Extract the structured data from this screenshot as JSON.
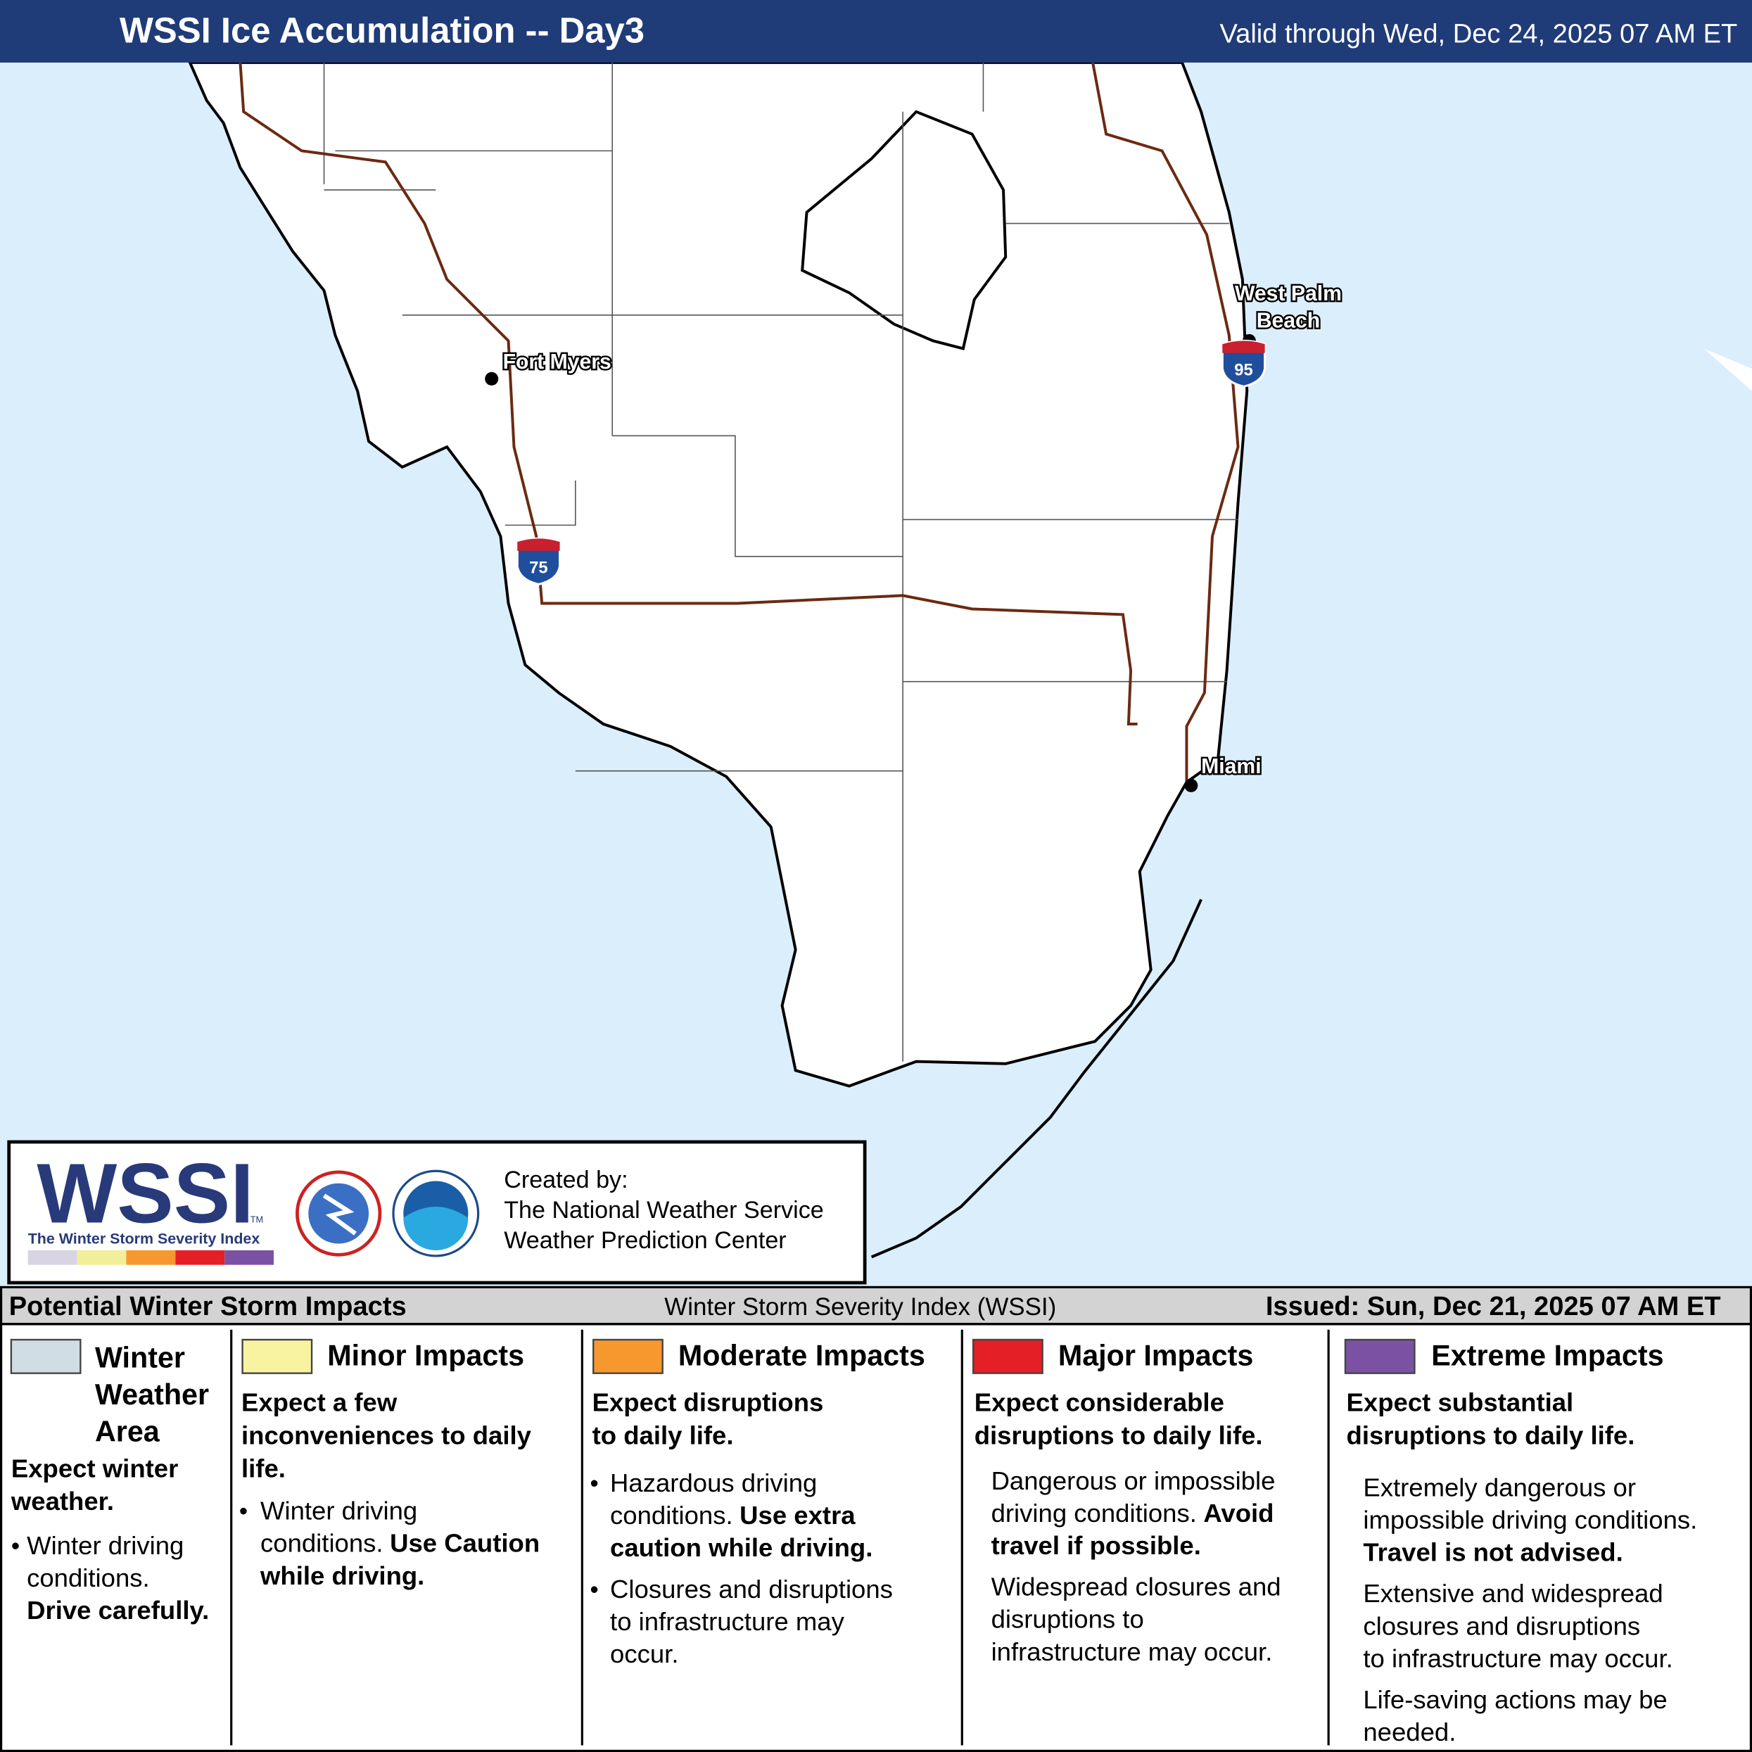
{
  "header": {
    "title": "WSSI Ice Accumulation -- Day3",
    "valid": "Valid through Wed, Dec 24, 2025 07 AM ET"
  },
  "map": {
    "cities": [
      {
        "label": [
          "Fort Myers"
        ]
      },
      {
        "label": [
          "West Palm",
          "Beach"
        ]
      },
      {
        "label": [
          "Miami"
        ]
      }
    ],
    "shields": [
      "75",
      "95"
    ]
  },
  "credits": {
    "logo": "WSSI",
    "tm": "TM",
    "logo_caption": "The Winter Storm Severity Index",
    "lines": [
      "Created by:",
      "The National Weather Service",
      "Weather Prediction Center"
    ],
    "colors": [
      "#d9d4e4",
      "#f2ee9a",
      "#f7982f",
      "#e41f26",
      "#7b52a3"
    ]
  },
  "legend": {
    "heading": "Potential Winter Storm Impacts",
    "center": "Winter Storm Severity Index (WSSI)",
    "issued": "Issued: Sun, Dec 21, 2025 07 AM ET",
    "bullet": "•",
    "columns": [
      {
        "color": "#d0dde5",
        "title": [
          "Winter",
          "Weather",
          "Area"
        ],
        "subtitle": [
          "Expect winter",
          "weather."
        ],
        "paragraphs": [
          [
            {
              "text": "Winter driving"
            },
            {
              "text": "conditions."
            },
            {
              "bold": "Drive carefully."
            }
          ]
        ]
      },
      {
        "color": "#f7f3a1",
        "title": [
          "Minor Impacts"
        ],
        "subtitle": [
          "Expect a few",
          "inconveniences to daily",
          "life."
        ],
        "paragraphs": [
          [
            {
              "text": "Winter driving"
            },
            {
              "text": "conditions.",
              "bold": "Use Caution"
            },
            {
              "bold": "while driving."
            }
          ]
        ]
      },
      {
        "color": "#f7982f",
        "title": [
          "Moderate Impacts"
        ],
        "subtitle": [
          "Expect disruptions",
          "to daily life."
        ],
        "paragraphs": [
          [
            {
              "text": "Hazardous driving"
            },
            {
              "text": "conditions.",
              "bold": "Use extra"
            },
            {
              "bold": "caution while driving."
            }
          ],
          [
            {
              "text": "Closures and disruptions"
            },
            {
              "text": "to infrastructure may"
            },
            {
              "text": "occur."
            }
          ]
        ]
      },
      {
        "color": "#e41f26",
        "title": [
          "Major Impacts"
        ],
        "subtitle": [
          "Expect considerable",
          "disruptions to daily life."
        ],
        "paragraphs": [
          [
            {
              "text": "Dangerous or impossible"
            },
            {
              "text": "driving conditions.",
              "bold": "Avoid"
            },
            {
              "bold": "travel if possible."
            }
          ],
          [
            {
              "text": "Widespread closures and"
            },
            {
              "text": "disruptions to"
            },
            {
              "text": "infrastructure may occur."
            }
          ]
        ]
      },
      {
        "color": "#7b52a3",
        "title": [
          "Extreme Impacts"
        ],
        "subtitle": [
          "Expect substantial",
          "disruptions to daily life."
        ],
        "paragraphs": [
          [
            {
              "text": "Extremely dangerous or"
            },
            {
              "text": "impossible driving conditions."
            },
            {
              "bold": "Travel is not advised."
            }
          ],
          [
            {
              "text": "Extensive and widespread"
            },
            {
              "text": "closures and disruptions"
            },
            {
              "text": "to infrastructure may occur."
            }
          ],
          [
            {
              "text": "Life-saving actions may be"
            },
            {
              "text": "needed."
            }
          ]
        ]
      }
    ]
  }
}
